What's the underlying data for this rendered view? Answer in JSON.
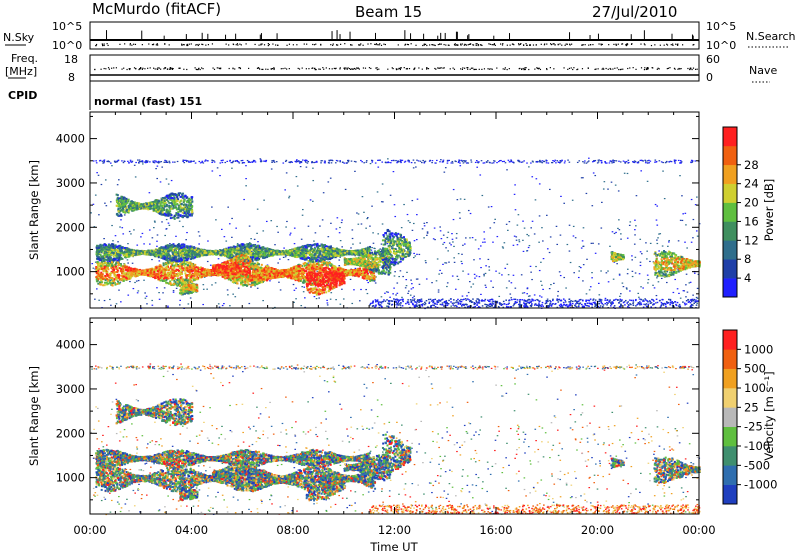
{
  "header": {
    "station": "McMurdo (fitACF)",
    "beam": "Beam 15",
    "date": "27/Jul/2010"
  },
  "status_panels": {
    "nsky": {
      "label": "N.Sky",
      "ticks": [
        "10^5",
        "10^0"
      ]
    },
    "nsearch": {
      "label": "N.Search",
      "ticks": [
        "10^5",
        "10^0"
      ]
    },
    "freq": {
      "label_line1": "Freq.",
      "label_line2": "[MHz]",
      "ticks": [
        "18",
        "8"
      ]
    },
    "nave": {
      "label": "Nave",
      "ticks": [
        "60",
        "0"
      ]
    },
    "cpid": {
      "label": "CPID",
      "value": "normal (fast) 151"
    }
  },
  "chart_data": [
    {
      "type": "heatmap",
      "name": "power",
      "ylabel": "Slant Range [km]",
      "xlabel": "",
      "xlim": [
        0,
        24
      ],
      "ylim": [
        180,
        4600
      ],
      "x_ticks": [
        0,
        4,
        8,
        12,
        16,
        20,
        24
      ],
      "y_ticks": [
        1000,
        2000,
        3000,
        4000
      ],
      "colorbar": {
        "label": "Power [dB]",
        "range": [
          0,
          32
        ],
        "ticks": [
          "4",
          "8",
          "12",
          "16",
          "20",
          "24",
          "28"
        ],
        "colors": [
          "#2020ff",
          "#1f3fa8",
          "#2f6e8c",
          "#3f8f5f",
          "#5fbf3f",
          "#cfcf30",
          "#f0a020",
          "#f06010",
          "#ff2020"
        ]
      }
    },
    {
      "type": "heatmap",
      "name": "velocity",
      "ylabel": "Slant Range [km]",
      "xlabel": "Time UT",
      "xlim": [
        0,
        24
      ],
      "ylim": [
        180,
        4600
      ],
      "x_ticks": [
        0,
        4,
        8,
        12,
        16,
        20,
        24
      ],
      "x_tick_labels": [
        "00:00",
        "04:00",
        "08:00",
        "12:00",
        "16:00",
        "20:00",
        "00:00"
      ],
      "y_ticks": [
        1000,
        2000,
        3000,
        4000
      ],
      "colorbar": {
        "label": "Velocity [m s⁻¹]",
        "ticks": [
          "1000",
          "500",
          "100",
          "25",
          "-25",
          "-100",
          "-500",
          "-1000"
        ],
        "colors": [
          "#1f3fbf",
          "#2f6eaf",
          "#3f8f6f",
          "#5fbf3f",
          "#b8b8b8",
          "#f0d070",
          "#f0a020",
          "#f06010",
          "#ff2020"
        ]
      }
    }
  ]
}
